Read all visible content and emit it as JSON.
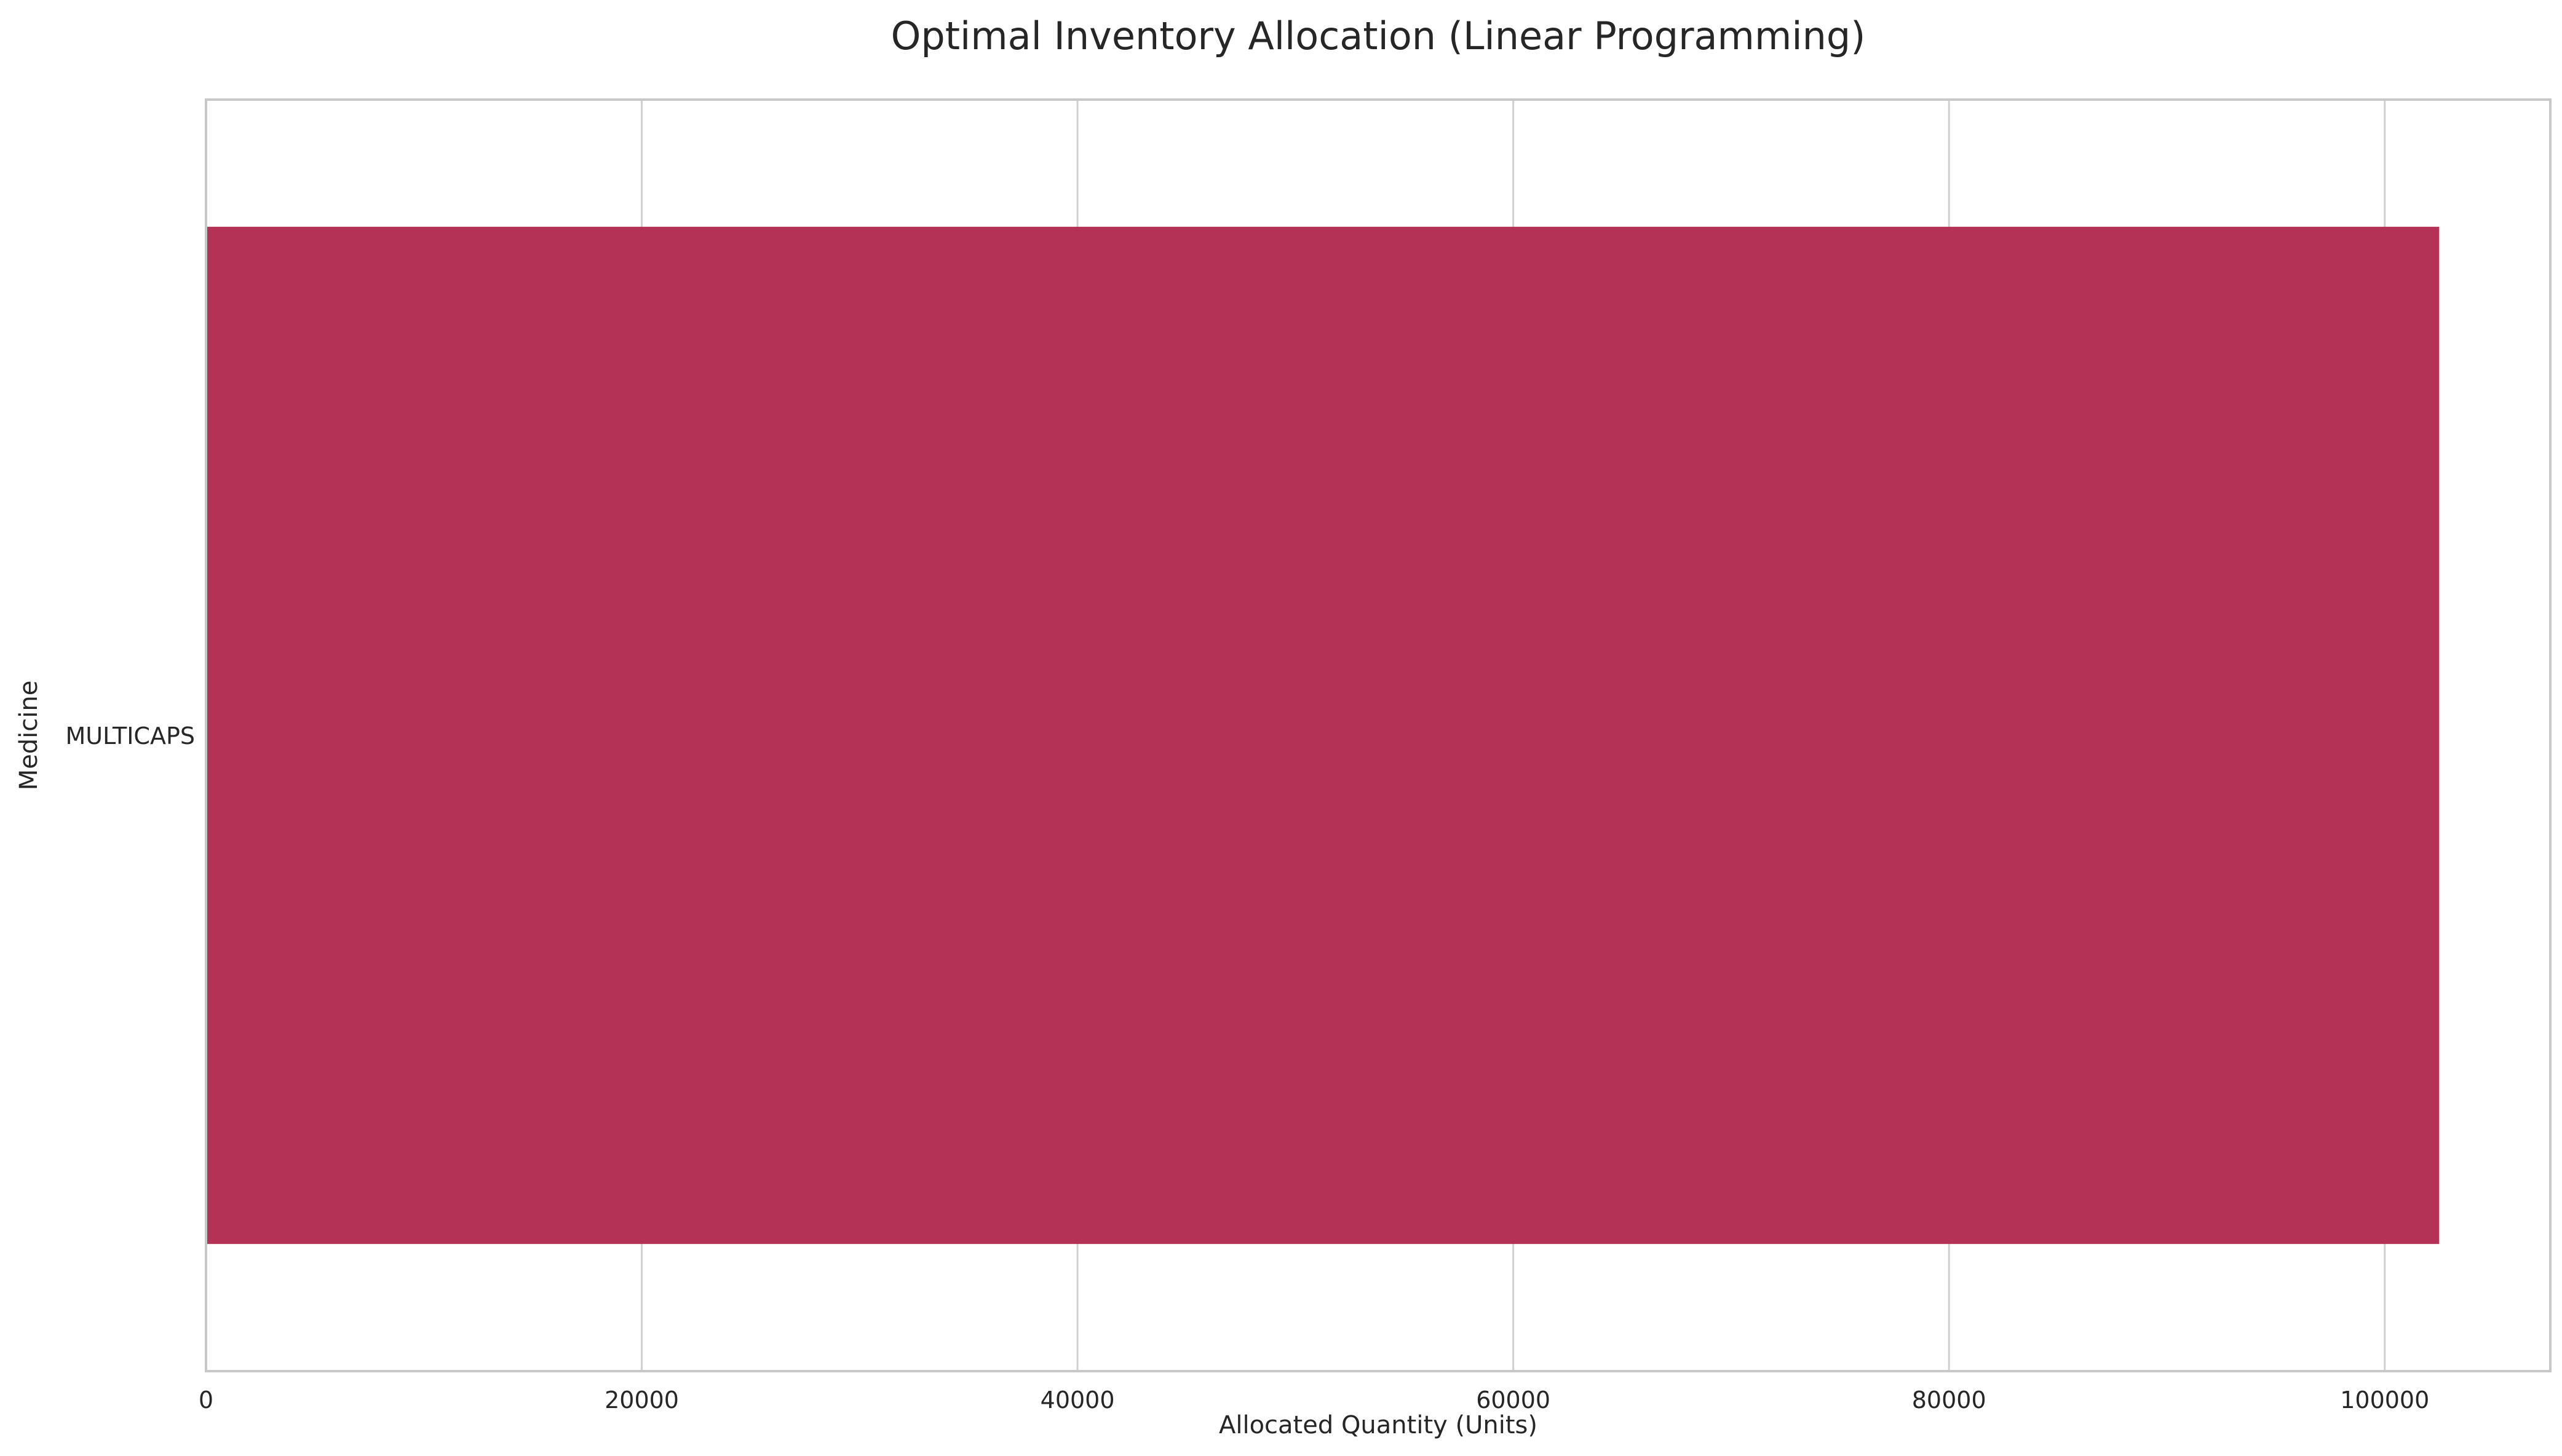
{
  "chart_data": {
    "type": "bar",
    "orientation": "horizontal",
    "title": "Optimal Inventory Allocation (Linear Programming)",
    "xlabel": "Allocated Quantity (Units)",
    "ylabel": "Medicine",
    "categories": [
      "MULTICAPS"
    ],
    "values": [
      102500
    ],
    "xlim": [
      0,
      107600
    ],
    "xticks": [
      0,
      20000,
      40000,
      60000,
      80000,
      100000
    ],
    "xtick_labels": [
      "0",
      "20000",
      "40000",
      "60000",
      "80000",
      "100000"
    ],
    "grid": true,
    "legend": "none",
    "colors": {
      "bar": "#b33256",
      "grid": "#d0d0d0",
      "frame": "#c8c8c8",
      "text": "#262626"
    }
  }
}
